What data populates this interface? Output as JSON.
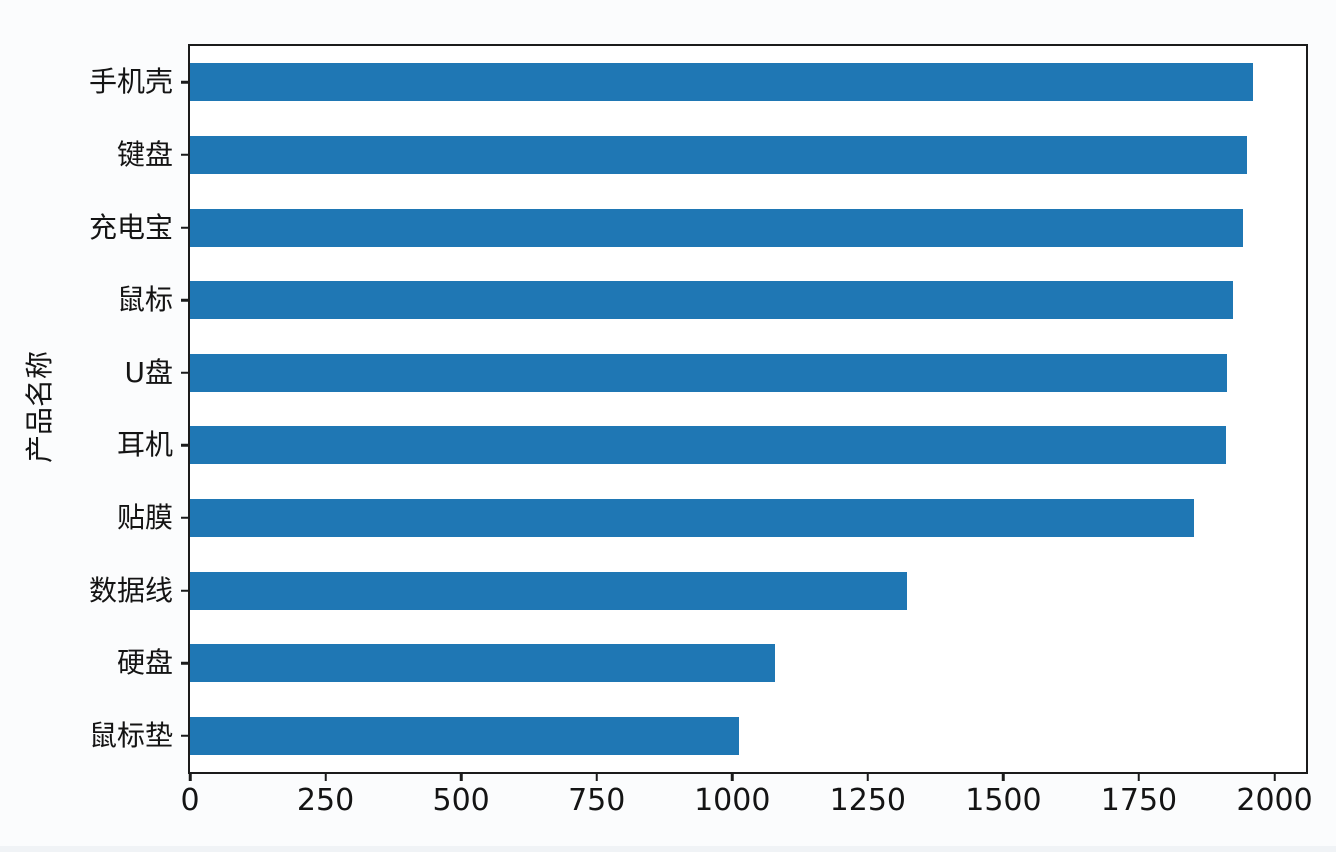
{
  "page": {
    "background": "#fbfcfd"
  },
  "chart_data": {
    "type": "bar",
    "orientation": "horizontal",
    "title": "",
    "xlabel": "",
    "ylabel": "产品名称",
    "categories": [
      "手机壳",
      "键盘",
      "充电宝",
      "鼠标",
      "U盘",
      "耳机",
      "贴膜",
      "数据线",
      "硬盘",
      "鼠标垫"
    ],
    "values": [
      1960,
      1950,
      1942,
      1924,
      1913,
      1911,
      1852,
      1323,
      1079,
      1012
    ],
    "xlim": [
      0,
      2058
    ],
    "x_ticks": [
      0,
      250,
      500,
      750,
      1000,
      1250,
      1500,
      1750,
      2000
    ],
    "bar_color": "#1f77b4",
    "axis_color": "#1b1b1b",
    "text_color": "#141414",
    "grid": false,
    "legend": null
  }
}
